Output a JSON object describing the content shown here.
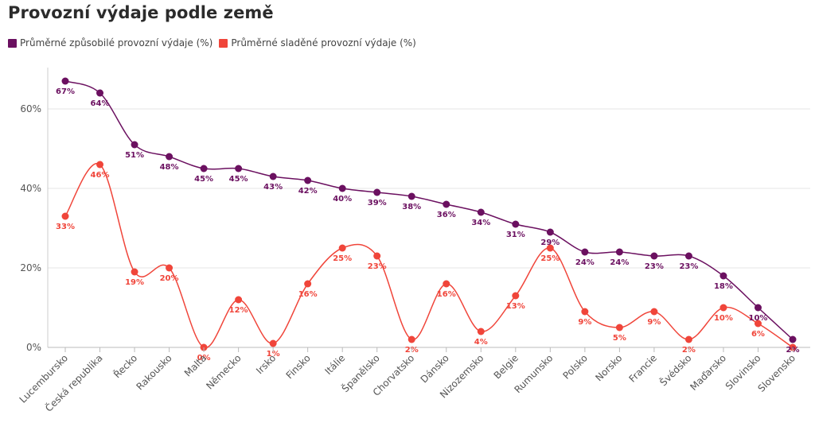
{
  "chart_data": {
    "type": "line",
    "title": "Provozní výdaje podle země",
    "xlabel": "",
    "ylabel": "",
    "ylim": [
      0,
      70
    ],
    "yticks": [
      "0%",
      "20%",
      "40%",
      "60%"
    ],
    "ytick_values": [
      0,
      20,
      40,
      60
    ],
    "grid": true,
    "legend_position": "top-left",
    "categories": [
      "Lucembursko",
      "Česká republika",
      "Řecko",
      "Rakousko",
      "Malta",
      "Německo",
      "Irsko",
      "Finsko",
      "Itálie",
      "Španělsko",
      "Chorvatsko",
      "Dánsko",
      "Nizozemsko",
      "Belgie",
      "Rumunsko",
      "Polsko",
      "Norsko",
      "Francie",
      "Švédsko",
      "Maďarsko",
      "Slovinsko",
      "Slovensko"
    ],
    "series": [
      {
        "name": "Průměrné způsobilé provozní výdaje (%)",
        "color": "#6b1060",
        "values": [
          67,
          64,
          51,
          48,
          45,
          45,
          43,
          42,
          40,
          39,
          38,
          36,
          34,
          31,
          29,
          24,
          24,
          23,
          23,
          18,
          10,
          2
        ],
        "labels": [
          "67%",
          "64%",
          "51%",
          "48%",
          "45%",
          "45%",
          "43%",
          "42%",
          "40%",
          "39%",
          "38%",
          "36%",
          "34%",
          "31%",
          "29%",
          "24%",
          "24%",
          "23%",
          "23%",
          "18%",
          "10%",
          "2%"
        ]
      },
      {
        "name": "Průměrné sladěné provozní výdaje (%)",
        "color": "#f0453a",
        "values": [
          33,
          46,
          19,
          20,
          0,
          12,
          1,
          16,
          25,
          23,
          2,
          16,
          4,
          13,
          25,
          9,
          5,
          9,
          2,
          10,
          6,
          0
        ],
        "labels": [
          "33%",
          "46%",
          "19%",
          "20%",
          "0%",
          "12%",
          "1%",
          "16%",
          "25%",
          "23%",
          "2%",
          "16%",
          "4%",
          "13%",
          "25%",
          "9%",
          "5%",
          "9%",
          "2%",
          "10%",
          "6%",
          ""
        ]
      }
    ]
  }
}
